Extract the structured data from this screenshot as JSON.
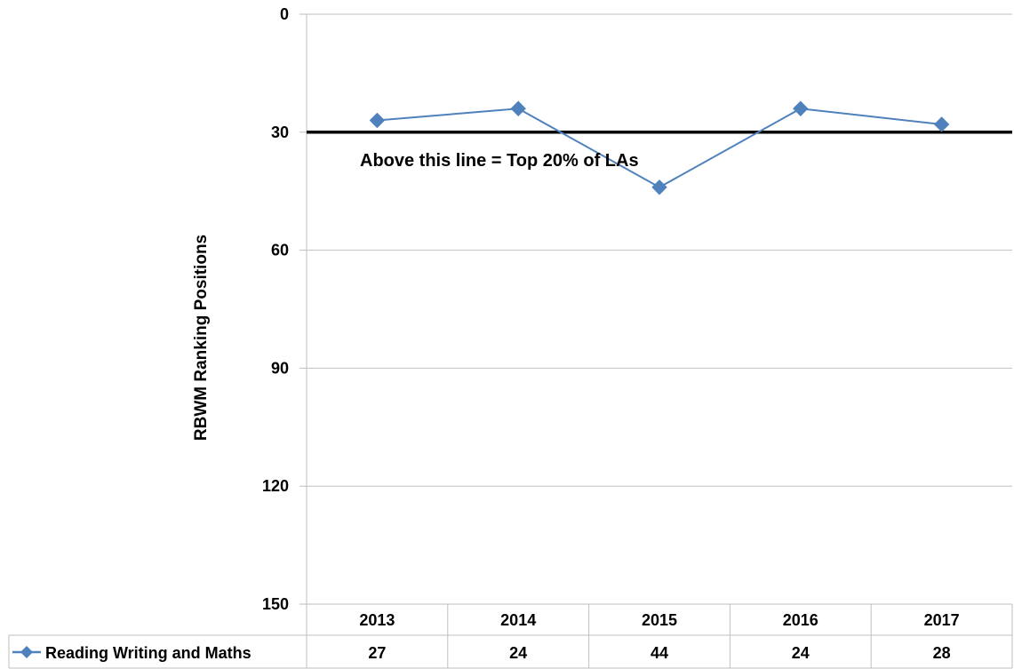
{
  "chart_data": {
    "type": "line",
    "categories": [
      "2013",
      "2014",
      "2015",
      "2016",
      "2017"
    ],
    "series": [
      {
        "name": "Reading Writing and Maths",
        "values": [
          27,
          24,
          44,
          24,
          28
        ],
        "color": "#4F81BD"
      }
    ],
    "y_axis_inverted": true,
    "ylim": [
      0,
      150
    ],
    "yticks": [
      "0",
      "30",
      "60",
      "90",
      "120",
      "150"
    ],
    "ylabel": "RBWM Ranking Positions",
    "xlabel": "",
    "grid": true,
    "legend": "data-table-bottom",
    "reference_line": {
      "value": 30,
      "color": "#000000"
    },
    "annotation": "Above this line = Top 20% of LAs",
    "data_table": {
      "headers": [
        "2013",
        "2014",
        "2015",
        "2016",
        "2017"
      ],
      "row_label": "Reading Writing and Maths",
      "values": [
        "27",
        "24",
        "44",
        "24",
        "28"
      ]
    }
  }
}
